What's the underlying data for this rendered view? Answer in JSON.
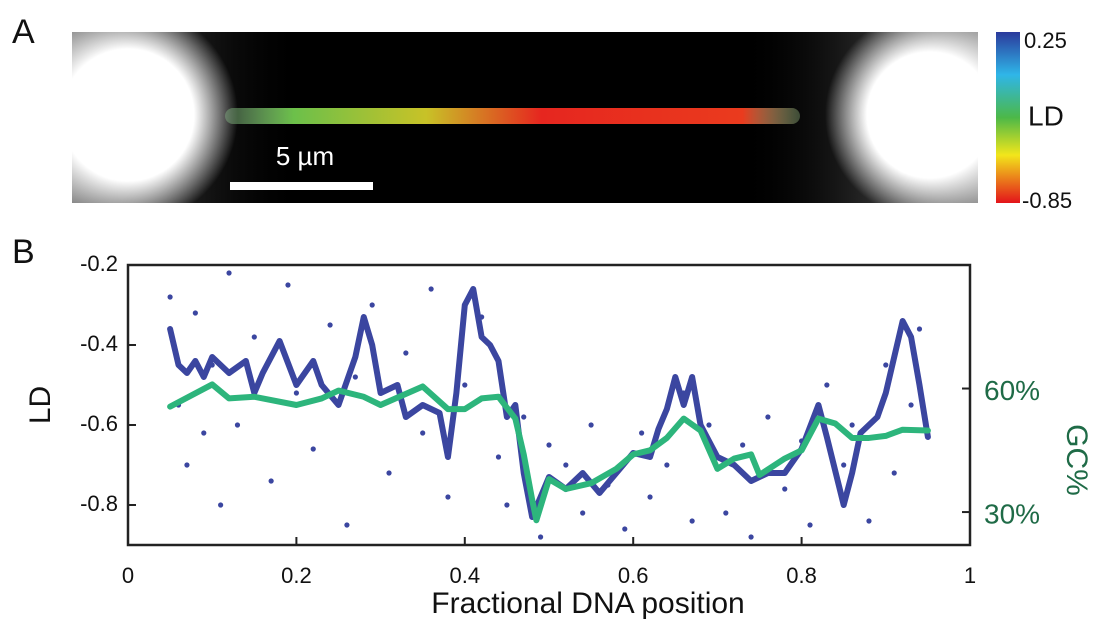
{
  "panel_a": {
    "label": "A",
    "scale_bar": "5 µm",
    "colorbar": {
      "label": "LD",
      "ticks": [
        -0.85,
        0.25
      ]
    }
  },
  "chart_data": {
    "type": "line",
    "panel_label": "B",
    "xlabel": "Fractional DNA position",
    "ylabel": "LD",
    "y2label": "GC%",
    "xlim": [
      0,
      1
    ],
    "xticks": [
      0,
      0.2,
      0.4,
      0.6,
      0.8,
      1
    ],
    "ylim": [
      -0.9,
      -0.2
    ],
    "yticks": [
      -0.2,
      -0.4,
      -0.6,
      -0.8
    ],
    "y2lim": [
      22,
      90
    ],
    "y2ticks": [
      {
        "value": 30,
        "label": "30%"
      },
      {
        "value": 60,
        "label": "60%"
      }
    ],
    "scatter": {
      "color": "#3b46a0",
      "x": [
        0.05,
        0.06,
        0.07,
        0.08,
        0.09,
        0.1,
        0.11,
        0.12,
        0.13,
        0.15,
        0.17,
        0.19,
        0.2,
        0.22,
        0.24,
        0.26,
        0.27,
        0.29,
        0.31,
        0.33,
        0.35,
        0.36,
        0.38,
        0.4,
        0.42,
        0.44,
        0.45,
        0.47,
        0.49,
        0.5,
        0.52,
        0.54,
        0.55,
        0.57,
        0.59,
        0.61,
        0.62,
        0.64,
        0.66,
        0.67,
        0.69,
        0.71,
        0.73,
        0.74,
        0.76,
        0.78,
        0.8,
        0.81,
        0.83,
        0.85,
        0.86,
        0.88,
        0.9,
        0.91,
        0.93,
        0.94
      ],
      "y": [
        -0.28,
        -0.55,
        -0.7,
        -0.32,
        -0.62,
        -0.45,
        -0.8,
        -0.22,
        -0.6,
        -0.38,
        -0.74,
        -0.25,
        -0.52,
        -0.66,
        -0.35,
        -0.85,
        -0.48,
        -0.3,
        -0.72,
        -0.42,
        -0.62,
        -0.26,
        -0.78,
        -0.5,
        -0.33,
        -0.68,
        -0.8,
        -0.58,
        -0.88,
        -0.65,
        -0.7,
        -0.82,
        -0.6,
        -0.75,
        -0.86,
        -0.62,
        -0.78,
        -0.7,
        -0.52,
        -0.84,
        -0.6,
        -0.82,
        -0.65,
        -0.88,
        -0.58,
        -0.76,
        -0.64,
        -0.85,
        -0.5,
        -0.7,
        -0.6,
        -0.84,
        -0.45,
        -0.72,
        -0.55,
        -0.36
      ]
    },
    "series": [
      {
        "color": "#3b46a0",
        "axis": "y",
        "x": [
          0.05,
          0.06,
          0.07,
          0.08,
          0.09,
          0.1,
          0.12,
          0.14,
          0.15,
          0.16,
          0.18,
          0.2,
          0.22,
          0.23,
          0.25,
          0.27,
          0.28,
          0.29,
          0.3,
          0.32,
          0.33,
          0.35,
          0.37,
          0.38,
          0.39,
          0.4,
          0.41,
          0.42,
          0.43,
          0.44,
          0.45,
          0.46,
          0.47,
          0.48,
          0.49,
          0.5,
          0.52,
          0.54,
          0.56,
          0.58,
          0.6,
          0.62,
          0.63,
          0.64,
          0.65,
          0.66,
          0.67,
          0.68,
          0.7,
          0.72,
          0.74,
          0.76,
          0.78,
          0.8,
          0.82,
          0.83,
          0.85,
          0.86,
          0.87,
          0.89,
          0.9,
          0.92,
          0.93,
          0.94,
          0.95
        ],
        "values": [
          -0.36,
          -0.45,
          -0.47,
          -0.44,
          -0.48,
          -0.43,
          -0.47,
          -0.44,
          -0.52,
          -0.47,
          -0.39,
          -0.5,
          -0.44,
          -0.5,
          -0.55,
          -0.43,
          -0.33,
          -0.4,
          -0.52,
          -0.5,
          -0.58,
          -0.55,
          -0.57,
          -0.68,
          -0.52,
          -0.3,
          -0.26,
          -0.38,
          -0.4,
          -0.44,
          -0.58,
          -0.55,
          -0.72,
          -0.83,
          -0.78,
          -0.73,
          -0.76,
          -0.72,
          -0.77,
          -0.72,
          -0.67,
          -0.68,
          -0.61,
          -0.56,
          -0.48,
          -0.55,
          -0.48,
          -0.6,
          -0.68,
          -0.7,
          -0.74,
          -0.72,
          -0.72,
          -0.66,
          -0.55,
          -0.63,
          -0.8,
          -0.72,
          -0.62,
          -0.58,
          -0.52,
          -0.34,
          -0.38,
          -0.5,
          -0.63
        ]
      },
      {
        "color": "#2db57c",
        "axis": "y2",
        "x": [
          0.05,
          0.1,
          0.12,
          0.15,
          0.2,
          0.23,
          0.25,
          0.28,
          0.3,
          0.35,
          0.38,
          0.4,
          0.42,
          0.44,
          0.46,
          0.47,
          0.48,
          0.485,
          0.5,
          0.52,
          0.55,
          0.58,
          0.6,
          0.62,
          0.64,
          0.66,
          0.68,
          0.7,
          0.72,
          0.74,
          0.75,
          0.78,
          0.8,
          0.82,
          0.84,
          0.86,
          0.88,
          0.9,
          0.92,
          0.95
        ],
        "values": [
          55.6,
          61,
          57.6,
          58,
          56,
          57.6,
          59.5,
          58,
          56,
          60.5,
          55,
          55,
          57.6,
          58,
          52.7,
          44,
          33,
          28,
          38,
          35.6,
          37,
          40.5,
          44,
          45,
          48,
          52.7,
          49.8,
          40.5,
          43,
          44,
          39,
          43,
          45,
          52.7,
          51.5,
          48,
          48,
          48.5,
          50,
          49.8
        ]
      }
    ]
  }
}
